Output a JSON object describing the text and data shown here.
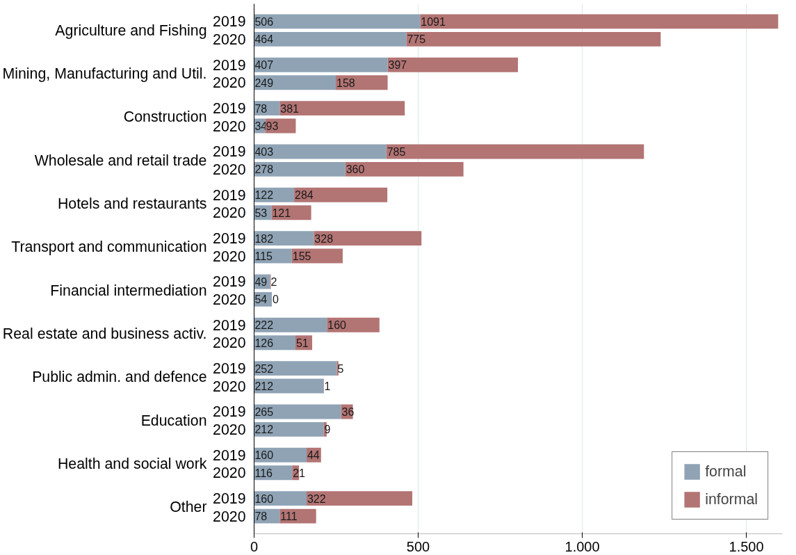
{
  "chart_data": {
    "type": "bar",
    "orientation": "horizontal",
    "stacked": true,
    "categories": [
      "2019",
      "2020",
      "2019",
      "2020",
      "2019",
      "2020",
      "2019",
      "2020",
      "2019",
      "2020",
      "2019",
      "2020",
      "2019",
      "2020",
      "2019",
      "2020",
      "2019",
      "2020",
      "2019",
      "2020",
      "2019",
      "2020",
      "2019",
      "2020"
    ],
    "annotations": [
      "Agriculture and Fishing",
      "Mining, Manufacturing and Util.",
      "Construction",
      "Wholesale and retail trade",
      "Hotels and restaurants",
      "Transport and communication",
      "Financial intermediation",
      "Real estate and business activ.",
      "Public admin. and defence",
      "Education",
      "Health and social work",
      "Other"
    ],
    "series": [
      {
        "name": "formal",
        "color": "#8fa3b5",
        "values": [
          506,
          464,
          407,
          249,
          78,
          34,
          403,
          278,
          122,
          53,
          182,
          115,
          49,
          54,
          222,
          126,
          252,
          212,
          265,
          212,
          160,
          116,
          160,
          78
        ]
      },
      {
        "name": "informal",
        "color": "#b37474",
        "values": [
          1091,
          775,
          397,
          158,
          381,
          93,
          785,
          360,
          284,
          121,
          328,
          155,
          2,
          0,
          160,
          51,
          5,
          1,
          36,
          9,
          44,
          21,
          322,
          111
        ]
      }
    ],
    "xlim": [
      0,
      1610
    ],
    "xticks": [
      0,
      500,
      {
        "value": 1000,
        "label": "1.000"
      },
      {
        "value": 1500,
        "label": "1.500"
      }
    ],
    "grid": "x",
    "legend": "bottom right",
    "data_labels": true
  }
}
